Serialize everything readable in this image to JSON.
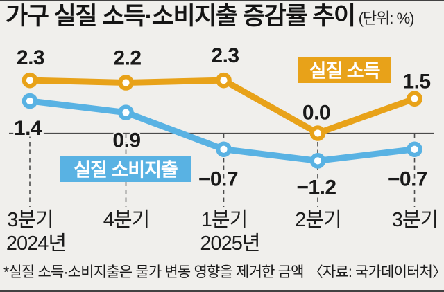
{
  "title": "가구 실질 소득·소비지출 증감률 추이",
  "unit_label": "(단위: %)",
  "footnote": "*실질 소득·소비지출은 물가 변동 영향을 제거한 금액",
  "source": "〈자료: 국가데이터처〉",
  "colors": {
    "income": "#E8A219",
    "spending": "#59B2E3",
    "background": "#F0EFEC",
    "axis": "#4B4B4B",
    "text": "#1A1A1A",
    "badge_text": "#FFFFFF",
    "crop_bar": "#424242"
  },
  "chart_data": {
    "type": "line",
    "title": "가구 실질 소득·소비지출 증감률 추이",
    "unit": "%",
    "categories": [
      "3분기",
      "4분기",
      "1분기",
      "2분기",
      "3분기"
    ],
    "category_years": [
      {
        "index": 0,
        "label": "2024년"
      },
      {
        "index": 2,
        "label": "2025년"
      }
    ],
    "series": [
      {
        "key": "income",
        "name": "실질 소득",
        "values": [
          2.3,
          2.2,
          2.3,
          0.0,
          1.5
        ],
        "color": "#E8A219"
      },
      {
        "key": "spending",
        "name": "실질 소비지출",
        "values": [
          1.4,
          0.9,
          -0.7,
          -1.2,
          -0.7
        ],
        "color": "#59B2E3"
      }
    ],
    "ylim": [
      -1.8,
      3.0
    ],
    "zero_line": true,
    "grid": "vertical-dashed-guides",
    "legend_position": "inline-badges",
    "xlabel": "",
    "ylabel": ""
  }
}
